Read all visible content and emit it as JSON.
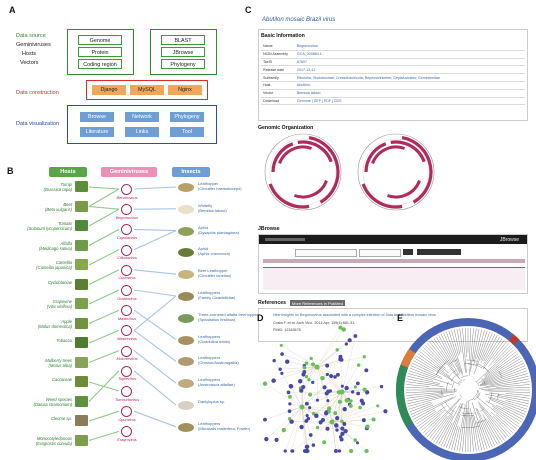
{
  "panels": {
    "a": "A",
    "b": "B",
    "c": "C",
    "d": "D",
    "e": "E"
  },
  "panel_a": {
    "left_labels": [
      "Data source",
      "Geminiviruses",
      "Hosts",
      "Vectors"
    ],
    "data_source": [
      "Genome",
      "Protein",
      "Coding region"
    ],
    "data_tools": [
      "BLAST",
      "JBrowse",
      "Phylogeny"
    ],
    "construction_label": "Data construction",
    "construction": [
      "Django",
      "MySQL",
      "Nginx"
    ],
    "visualization_label": "Data visualization",
    "visualization": [
      "Browse",
      "Network",
      "Phylogeny",
      "Literature",
      "Links",
      "Tool"
    ],
    "colors": {
      "source": "#2e8b2e",
      "construction": "#d32f2f",
      "visualization": "#2a4fa0"
    }
  },
  "panel_b": {
    "headers": {
      "hosts": "Hosts",
      "viruses": "Geminiviruses",
      "insects": "Insects"
    },
    "header_colors": {
      "hosts": "#5aa54a",
      "viruses": "#ee8fb6",
      "insects": "#6e9ed4"
    },
    "hosts": [
      {
        "name": "Turnip",
        "sci": "(Brassica rapa)"
      },
      {
        "name": "Beet",
        "sci": "(Beta vulgaris)"
      },
      {
        "name": "Tomato",
        "sci": "(Solanum lycopersicum)"
      },
      {
        "name": "Alfalfa",
        "sci": "(Medicago sativa)"
      },
      {
        "name": "Camellia",
        "sci": "(Camellia japonica)"
      },
      {
        "name": "Cyclobtaniae",
        "sci": ""
      },
      {
        "name": "Grapevine",
        "sci": "(Vitis vinifera)"
      },
      {
        "name": "Apple",
        "sci": "(Malus domestica)"
      },
      {
        "name": "Tobacco",
        "sci": ""
      },
      {
        "name": "Mulberry trees",
        "sci": "(Morus alba)"
      },
      {
        "name": "Cactaceae",
        "sci": ""
      },
      {
        "name": "Weed species",
        "sci": "(Datura stramonium)"
      },
      {
        "name": "Cleome sp.",
        "sci": ""
      },
      {
        "name": "Monocotyledonous",
        "sci": "(Eragrostis curvula)"
      }
    ],
    "viruses": [
      "Becurtovirus",
      "Begomovirus",
      "Capulavirus",
      "Citlodavirus",
      "Curtovirus",
      "Grablovirus",
      "Maldovirus",
      "Mastrevirus",
      "Mulcrilevirus",
      "Topilevirus",
      "Turncurtovirus",
      "Opunvirus",
      "Eragrovirus"
    ],
    "insects": [
      {
        "name": "Leafhopper",
        "sci": "(Circulifer haematoceps)"
      },
      {
        "name": "Whitefly",
        "sci": "(Bemisia tabaci)"
      },
      {
        "name": "Aphid",
        "sci": "(Dysaphis plantaginea)"
      },
      {
        "name": "Aphid",
        "sci": "(Aphis craccivora)"
      },
      {
        "name": "Beet Leafhopper",
        "sci": "(Circulifer tenellus)"
      },
      {
        "name": "Leafhoppers",
        "sci": "(Family Cicadellidae)"
      },
      {
        "name": "Three-cornered alfalfa treehopper",
        "sci": "(Spissistilus festinus)"
      },
      {
        "name": "Leafhoppers",
        "sci": "(Cicadulina mbila)"
      },
      {
        "name": "Leafhoppers",
        "sci": "(Orosius/Austroagallia)"
      },
      {
        "name": "Leafhoppers",
        "sci": "(Austroasca alfalfae)"
      },
      {
        "name": "Dactylopius sp.",
        "sci": ""
      },
      {
        "name": "Leafhoppers",
        "sci": "(Micrutalis malleifera, Fowler)"
      }
    ]
  },
  "panel_c": {
    "virus_title": "Abutilon mosaic Brazil virus",
    "basic_info": "Basic Information",
    "rows": [
      {
        "k": "Name",
        "v": "Begomovirus"
      },
      {
        "k": "NCBI Assembly",
        "v": "GCA_000864.1"
      },
      {
        "k": "TaxID",
        "v": "87607"
      },
      {
        "k": "Release date",
        "v": "2017-12-12"
      },
      {
        "k": "Subfamily",
        "v": "Riboviria; Shotokuvirae; Cressdnaviricota; Repensiviricetes; Geplafuvirales; Geminiviridae"
      },
      {
        "k": "Host",
        "v": "Abutilon"
      },
      {
        "k": "Vector",
        "v": "Bemisia tabaci"
      },
      {
        "k": "Download",
        "v": "Genome | GFF | PDF | CDS"
      }
    ],
    "genomic": "Genomic Organization",
    "jbrowse": "JBrowse",
    "jbrowse_logo": "JBrowse",
    "references": "References",
    "ref_button": "More References in PubMed",
    "ref_text": "New insights on Begomovirus associated with a complex infection of Sida and Abutilon mosaic virus",
    "ref_authors": "Costa F, et al. Arch Virol. 2014 Apr; 159(4):681-91.",
    "ref_pmid": "PMID: 12345678"
  },
  "panel_d": {
    "network_colors": [
      "#4a46a8",
      "#e8b46a",
      "#6abf5a",
      "#cccccc"
    ]
  },
  "panel_e": {
    "tree_colors": [
      "#4a66b5",
      "#2e8b57",
      "#e07b39",
      "#c0392b"
    ]
  }
}
